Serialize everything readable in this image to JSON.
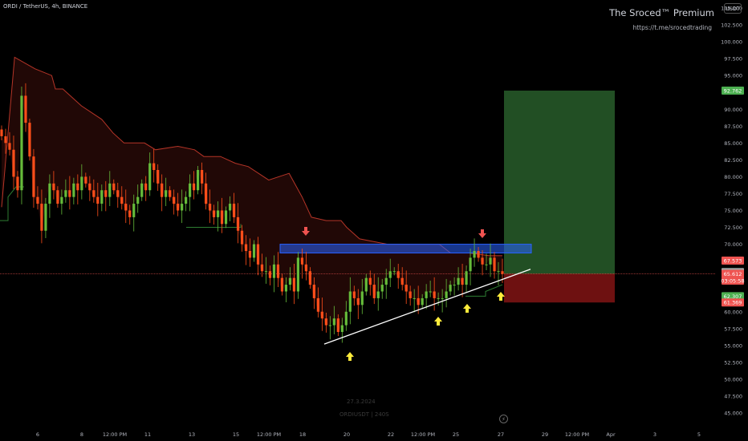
{
  "header": {
    "symbol_title": "ORDI / TetherUS, 4h, BINANCE",
    "brand_title": "The Sroced™ Premium",
    "brand_link": "https://t.me/srocedtrading",
    "currency_button": "USDT"
  },
  "watermark": {
    "date": "27.3.2024",
    "subtitle": "ORDIUSDT | 240S"
  },
  "chart_data": {
    "type": "candlestick",
    "title": "ORDI / TetherUS, 4h, BINANCE",
    "y_range": [
      44,
      107
    ],
    "y_ticks": [
      "45.000",
      "47.500",
      "50.000",
      "52.500",
      "55.000",
      "57.500",
      "60.000",
      "62.500",
      "65.000",
      "67.500",
      "70.000",
      "72.500",
      "75.000",
      "77.500",
      "80.000",
      "82.500",
      "85.000",
      "87.500",
      "90.000",
      "92.500",
      "95.000",
      "97.500",
      "100.000",
      "102.500",
      "105.000"
    ],
    "x_ticks": [
      "6",
      "8",
      "12:00 PM",
      "11",
      "13",
      "15",
      "12:00 PM",
      "18",
      "20",
      "22",
      "12:00 PM",
      "25",
      "27",
      "29",
      "12:00 PM",
      "Apr",
      "3",
      "5"
    ],
    "price_labels": [
      {
        "text": "92.762",
        "value": 92.762,
        "color": "#4caf50"
      },
      {
        "text": "67.573",
        "value": 67.573,
        "color": "#ef5350"
      },
      {
        "text": "65.876",
        "value": 65.876,
        "color": "#a3a3a3"
      },
      {
        "text": "65.612",
        "value": 65.612,
        "color": "#ef5350"
      },
      {
        "text": "03:05:58",
        "value": 64.6,
        "color": "#ef5350"
      },
      {
        "text": "62.307",
        "value": 62.307,
        "color": "#4caf50"
      },
      {
        "text": "61.369",
        "value": 61.369,
        "color": "#ef5350"
      }
    ],
    "current_price": 65.612,
    "resistance_zone": [
      68.7,
      70.0
    ],
    "trade_setup": {
      "entry": 65.612,
      "target": 92.762,
      "stop": 61.369
    },
    "trendline": {
      "from": [
        19.5,
        55.2
      ],
      "to": [
        28.3,
        66.3
      ]
    },
    "up_arrows": [
      19.9,
      23.8,
      25.3,
      26.9
    ],
    "down_arrows": [
      18.0,
      26.7
    ],
    "stop_line": [
      [
        0,
        75.5
      ],
      [
        0.7,
        97.7
      ],
      [
        1.8,
        96
      ],
      [
        2.7,
        95
      ],
      [
        2.9,
        93
      ],
      [
        3.3,
        93
      ],
      [
        3.7,
        92
      ],
      [
        4.3,
        90.5
      ],
      [
        5.4,
        88.5
      ],
      [
        6.0,
        86.5
      ],
      [
        6.6,
        85
      ],
      [
        7.7,
        85
      ],
      [
        8.3,
        84
      ],
      [
        9.5,
        84.5
      ],
      [
        10.4,
        84
      ],
      [
        10.9,
        83
      ],
      [
        11.8,
        83
      ],
      [
        12.6,
        82
      ],
      [
        13.3,
        81.5
      ],
      [
        14.4,
        79.5
      ],
      [
        15.5,
        80.5
      ],
      [
        16.2,
        77
      ],
      [
        16.7,
        74
      ],
      [
        17.5,
        73.5
      ],
      [
        18.3,
        73.5
      ],
      [
        18.6,
        72.5
      ],
      [
        19.3,
        70.8
      ],
      [
        20.8,
        70.0
      ],
      [
        22.2,
        70.0
      ],
      [
        23.6,
        70.0
      ],
      [
        24.2,
        68.7
      ],
      [
        25.2,
        68.7
      ],
      [
        26.3,
        68.3
      ],
      [
        27.0,
        68.3
      ]
    ],
    "support_line": [
      [
        0,
        73.5
      ],
      [
        0.4,
        77
      ],
      [
        0.7,
        78.5
      ],
      [
        1.3,
        78.5
      ],
      [
        1.5,
        78.5
      ],
      [
        2.7,
        78.5
      ],
      [
        3.0,
        78.5
      ],
      [
        4.4,
        78.5
      ],
      [
        4.8,
        78.5
      ],
      [
        7.0,
        78.5
      ],
      [
        7.4,
        78.5
      ],
      [
        7.6,
        78.5
      ],
      [
        8.3,
        78.5
      ],
      [
        8.5,
        78.5
      ],
      [
        11.6,
        78.5
      ],
      [
        11.7,
        78.5
      ],
      [
        11.8,
        78.5
      ],
      [
        12.3,
        78.5
      ],
      [
        12.5,
        78.5
      ],
      [
        15.5,
        78.5
      ],
      [
        15.7,
        78.5
      ],
      [
        16.7,
        78.5
      ],
      [
        17.0,
        78.5
      ],
      [
        18.3,
        78.5
      ],
      [
        18.5,
        78.5
      ],
      [
        18.7,
        78.5
      ],
      [
        19.3,
        78.5
      ],
      [
        19.5,
        78.5
      ],
      [
        20.8,
        78.5
      ],
      [
        22.2,
        78.5
      ],
      [
        23.6,
        78.5
      ],
      [
        24.2,
        78.5
      ],
      [
        25.2,
        78.5
      ],
      [
        26.3,
        78.5
      ],
      [
        27.0,
        78.5
      ]
    ],
    "closes": [
      86,
      85,
      84,
      80,
      78,
      92,
      88,
      83,
      77,
      76,
      72,
      76,
      79,
      78,
      76,
      77,
      78,
      77,
      79,
      78,
      80,
      79,
      78,
      77,
      76,
      78,
      77,
      79,
      78,
      77,
      76,
      75,
      74,
      76,
      77,
      79,
      78,
      82,
      81,
      79,
      77,
      78,
      77,
      76,
      75,
      76,
      77,
      79,
      78,
      81,
      79,
      76,
      75,
      74,
      75,
      73,
      75,
      76,
      74,
      72,
      70,
      69,
      68,
      70,
      67,
      66,
      66,
      65,
      67,
      65,
      63,
      64,
      65,
      63,
      68,
      67,
      66,
      64,
      62,
      60,
      59,
      58,
      58,
      59,
      57,
      58,
      60,
      63,
      62,
      61,
      63,
      65,
      64,
      62,
      63,
      64,
      65,
      66,
      66,
      65,
      64,
      63,
      62,
      62,
      61,
      62,
      63,
      63,
      62,
      62,
      62,
      63,
      64,
      64,
      65,
      64,
      66,
      68,
      69,
      68,
      67,
      67,
      68,
      66,
      66,
      65.6
    ]
  }
}
